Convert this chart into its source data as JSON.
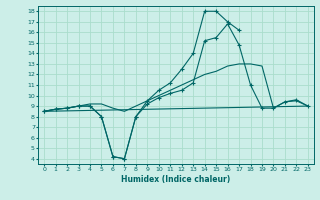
{
  "xlabel": "Humidex (Indice chaleur)",
  "bg_color": "#cceee8",
  "grid_color": "#aaddcc",
  "line_color": "#006666",
  "xlim": [
    -0.5,
    23.5
  ],
  "ylim": [
    3.5,
    18.5
  ],
  "xticks": [
    0,
    1,
    2,
    3,
    4,
    5,
    6,
    7,
    8,
    9,
    10,
    11,
    12,
    13,
    14,
    15,
    16,
    17,
    18,
    19,
    20,
    21,
    22,
    23
  ],
  "yticks": [
    4,
    5,
    6,
    7,
    8,
    9,
    10,
    11,
    12,
    13,
    14,
    15,
    16,
    17,
    18
  ],
  "line1_x": [
    0,
    1,
    2,
    3,
    4,
    5,
    6,
    7,
    8,
    9,
    10,
    11,
    12,
    13,
    14,
    15,
    16,
    17
  ],
  "line1_y": [
    8.5,
    8.7,
    8.8,
    9.0,
    9.0,
    8.0,
    4.2,
    4.0,
    8.0,
    9.5,
    10.5,
    11.2,
    12.5,
    14.0,
    18.0,
    18.0,
    17.0,
    16.2
  ],
  "line2_x": [
    0,
    1,
    2,
    3,
    4,
    5,
    6,
    7,
    8,
    9,
    10,
    11,
    12,
    13,
    14,
    15,
    16,
    17,
    18,
    19,
    20,
    21,
    22,
    23
  ],
  "line2_y": [
    8.5,
    8.7,
    8.8,
    9.0,
    9.0,
    8.0,
    4.2,
    4.0,
    8.0,
    9.2,
    9.8,
    10.2,
    10.5,
    11.2,
    15.2,
    15.5,
    16.8,
    14.8,
    11.0,
    8.8,
    8.8,
    9.4,
    9.6,
    9.0
  ],
  "line3_x": [
    0,
    23
  ],
  "line3_y": [
    8.5,
    9.0
  ],
  "line4_x": [
    0,
    1,
    2,
    3,
    4,
    5,
    6,
    7,
    8,
    9,
    10,
    11,
    12,
    13,
    14,
    15,
    16,
    17,
    18,
    19,
    20,
    21,
    22,
    23
  ],
  "line4_y": [
    8.5,
    8.7,
    8.8,
    9.0,
    9.2,
    9.2,
    8.8,
    8.5,
    9.0,
    9.5,
    10.0,
    10.5,
    11.0,
    11.5,
    12.0,
    12.3,
    12.8,
    13.0,
    13.0,
    12.8,
    8.8,
    9.4,
    9.5,
    9.0
  ]
}
